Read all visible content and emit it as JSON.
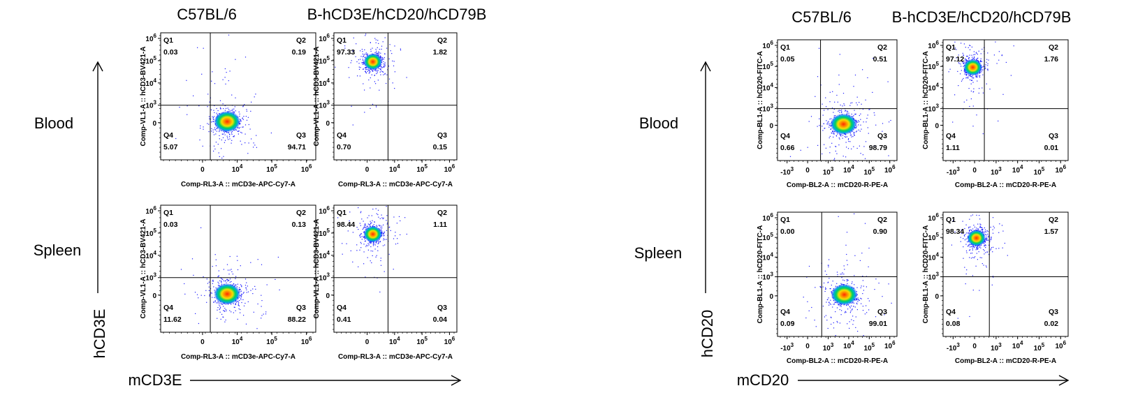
{
  "colors": {
    "cold": "#1a1aff",
    "mid": "#00d060",
    "warm": "#f5e000",
    "hot": "#ff2a00",
    "ink": "#000000"
  },
  "layout_labels": [
    {
      "block": "cd3",
      "column_titles": [
        "C57BL/6",
        "B-hCD3E/hCD20/hCD79B"
      ],
      "row_titles": [
        "Blood",
        "Spleen"
      ],
      "x_arrow_label": "mCD3E",
      "y_arrow_label": "hCD3E"
    },
    {
      "block": "cd20",
      "column_titles": [
        "C57BL/6",
        "B-hCD3E/hCD20/hCD79B"
      ],
      "row_titles": [
        "Blood",
        "Spleen"
      ],
      "x_arrow_label": "mCD20",
      "y_arrow_label": "hCD20"
    }
  ],
  "chart_data": [
    {
      "type": "scatter",
      "block": "cd3",
      "row": "Blood",
      "column": "C57BL/6",
      "xlabel": "Comp-RL3-A :: mCD3e-APC-Cy7-A",
      "ylabel": "Comp-VL1-A :: hCD3-BV421-A",
      "x_tick_labels": [
        "0",
        "10^4",
        "10^5",
        "10^6"
      ],
      "y_tick_labels": [
        "0",
        "10^3",
        "10^4",
        "10^5",
        "10^6"
      ],
      "quadrants": {
        "Q1": "0.03",
        "Q2": "0.19",
        "Q3": "94.71",
        "Q4": "5.07"
      },
      "population": "Q3"
    },
    {
      "type": "scatter",
      "block": "cd3",
      "row": "Blood",
      "column": "B-hCD3E/hCD20/hCD79B",
      "xlabel": "Comp-RL3-A :: mCD3e-APC-Cy7-A",
      "ylabel": "Comp-VL1-A :: hCD3-BV421-A",
      "x_tick_labels": [
        "0",
        "10^4",
        "10^5",
        "10^6"
      ],
      "y_tick_labels": [
        "0",
        "10^3",
        "10^4",
        "10^5",
        "10^6"
      ],
      "quadrants": {
        "Q1": "97.33",
        "Q2": "1.82",
        "Q3": "0.15",
        "Q4": "0.70"
      },
      "population": "Q1"
    },
    {
      "type": "scatter",
      "block": "cd3",
      "row": "Spleen",
      "column": "C57BL/6",
      "xlabel": "Comp-RL3-A :: mCD3e-APC-Cy7-A",
      "ylabel": "Comp-VL1-A :: hCD3-BV421-A",
      "x_tick_labels": [
        "0",
        "10^4",
        "10^5",
        "10^6"
      ],
      "y_tick_labels": [
        "0",
        "10^3",
        "10^4",
        "10^5",
        "10^6"
      ],
      "quadrants": {
        "Q1": "0.03",
        "Q2": "0.13",
        "Q3": "88.22",
        "Q4": "11.62"
      },
      "population": "Q3"
    },
    {
      "type": "scatter",
      "block": "cd3",
      "row": "Spleen",
      "column": "B-hCD3E/hCD20/hCD79B",
      "xlabel": "Comp-RL3-A :: mCD3e-APC-Cy7-A",
      "ylabel": "Comp-VL1-A :: hCD3-BV421-A",
      "x_tick_labels": [
        "0",
        "10^4",
        "10^5",
        "10^6"
      ],
      "y_tick_labels": [
        "0",
        "10^3",
        "10^4",
        "10^5",
        "10^6"
      ],
      "quadrants": {
        "Q1": "98.44",
        "Q2": "1.11",
        "Q3": "0.04",
        "Q4": "0.41"
      },
      "population": "Q1"
    },
    {
      "type": "scatter",
      "block": "cd20",
      "row": "Blood",
      "column": "C57BL/6",
      "xlabel": "Comp-BL2-A :: mCD20-R-PE-A",
      "ylabel": "Comp-BL1-A :: hCD20-FITC-A",
      "x_tick_labels": [
        "-10^3",
        "0",
        "10^3",
        "10^4",
        "10^5",
        "10^6"
      ],
      "y_tick_labels": [
        "0",
        "10^3",
        "10^4",
        "10^5",
        "10^6"
      ],
      "quadrants": {
        "Q1": "0.05",
        "Q2": "0.51",
        "Q3": "98.79",
        "Q4": "0.66"
      },
      "population": "Q3"
    },
    {
      "type": "scatter",
      "block": "cd20",
      "row": "Blood",
      "column": "B-hCD3E/hCD20/hCD79B",
      "xlabel": "Comp-BL2-A :: mCD20-R-PE-A",
      "ylabel": "Comp-BL1-A :: hCD20-FITC-A",
      "x_tick_labels": [
        "-10^3",
        "0",
        "10^3",
        "10^4",
        "10^5",
        "10^6"
      ],
      "y_tick_labels": [
        "0",
        "10^3",
        "10^4",
        "10^5",
        "10^6"
      ],
      "quadrants": {
        "Q1": "97.12",
        "Q2": "1.76",
        "Q3": "0.01",
        "Q4": "1.11"
      },
      "population": "Q1"
    },
    {
      "type": "scatter",
      "block": "cd20",
      "row": "Spleen",
      "column": "C57BL/6",
      "xlabel": "Comp-BL2-A :: mCD20-R-PE-A",
      "ylabel": "Comp-BL1-A :: hCD20-FITC-A",
      "x_tick_labels": [
        "-10^3",
        "0",
        "10^3",
        "10^4",
        "10^5",
        "10^6"
      ],
      "y_tick_labels": [
        "0",
        "10^3",
        "10^4",
        "10^5",
        "10^6"
      ],
      "quadrants": {
        "Q1": "0.00",
        "Q2": "0.90",
        "Q3": "99.01",
        "Q4": "0.09"
      },
      "population": "Q3"
    },
    {
      "type": "scatter",
      "block": "cd20",
      "row": "Spleen",
      "column": "B-hCD3E/hCD20/hCD79B",
      "xlabel": "Comp-BL2-A :: mCD20-R-PE-A",
      "ylabel": "Comp-BL1-A :: hCD20-FITC-A",
      "x_tick_labels": [
        "-10^3",
        "0",
        "10^3",
        "10^4",
        "10^5",
        "10^6"
      ],
      "y_tick_labels": [
        "0",
        "10^3",
        "10^4",
        "10^5",
        "10^6"
      ],
      "quadrants": {
        "Q1": "98.34",
        "Q2": "1.57",
        "Q3": "0.02",
        "Q4": "0.08"
      },
      "population": "Q1"
    }
  ]
}
